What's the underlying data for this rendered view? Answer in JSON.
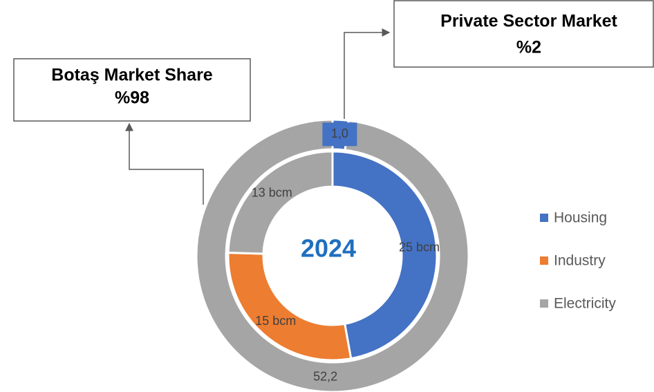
{
  "chart_data": {
    "type": "doughnut",
    "center_label": "2024",
    "inner": {
      "categories": [
        "Housing",
        "Industry",
        "Electricity"
      ],
      "values": [
        25,
        15,
        13
      ],
      "value_labels": [
        "25 bcm",
        "15 bcm",
        "13 bcm"
      ],
      "colors": [
        "#4472c4",
        "#ed7d31",
        "#a5a5a5"
      ]
    },
    "outer": {
      "values": [
        1.0,
        52.2
      ],
      "value_labels": [
        "1,0",
        "52,2"
      ],
      "colors": [
        "#4472c4",
        "#a5a5a5"
      ]
    },
    "annotations": [
      {
        "lines": [
          "Private Sector Market",
          "%2"
        ]
      },
      {
        "lines": [
          "Botaş Market Share",
          "%98"
        ]
      }
    ]
  }
}
